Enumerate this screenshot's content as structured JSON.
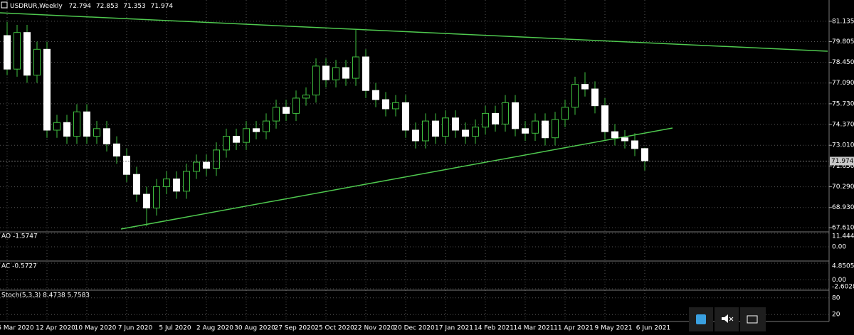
{
  "chart_data": {
    "type": "candlestick",
    "title": "USDRUR,Weekly",
    "categories": [
      "5 Mar 2020",
      null,
      null,
      null,
      "12 Apr 2020",
      null,
      null,
      null,
      "10 May 2020",
      null,
      null,
      null,
      "7 Jun 2020",
      null,
      null,
      null,
      "5 Jul 2020",
      null,
      null,
      null,
      "2 Aug 2020",
      null,
      null,
      null,
      "30 Aug 2020",
      null,
      null,
      null,
      "27 Sep 2020",
      null,
      null,
      null,
      "25 Oct 2020",
      null,
      null,
      null,
      "22 Nov 2020",
      null,
      null,
      null,
      "20 Dec 2020",
      null,
      null,
      null,
      "17 Jan 2021",
      null,
      null,
      null,
      "14 Feb 2021",
      null,
      null,
      null,
      "14 Mar 2021",
      null,
      null,
      null,
      "11 Apr 2021",
      null,
      null,
      null,
      "9 May 2021",
      null,
      null,
      null,
      "6 Jun 2021"
    ],
    "open": [
      80.2,
      78.0,
      80.4,
      77.6,
      79.3,
      74.0,
      74.5,
      73.6,
      75.2,
      73.6,
      74.1,
      73.1,
      72.3,
      71.1,
      69.8,
      68.9,
      70.3,
      70.8,
      70.0,
      71.3,
      71.9,
      71.5,
      72.7,
      73.6,
      73.2,
      74.1,
      73.9,
      74.6,
      75.5,
      75.1,
      76.1,
      76.3,
      78.2,
      77.3,
      78.1,
      77.4,
      78.8,
      76.6,
      76.0,
      75.4,
      75.8,
      74.0,
      73.3,
      74.6,
      73.6,
      74.8,
      74.0,
      73.6,
      74.2,
      75.1,
      74.4,
      75.8,
      74.1,
      73.8,
      74.6,
      73.5,
      74.7,
      75.5,
      77.0,
      76.7,
      75.6,
      73.9,
      73.5,
      73.3,
      72.794
    ],
    "high": [
      81.1,
      80.9,
      80.9,
      79.8,
      79.8,
      75.0,
      75.0,
      75.7,
      75.7,
      74.6,
      74.6,
      73.6,
      72.8,
      71.6,
      70.3,
      70.8,
      71.3,
      71.3,
      71.8,
      72.4,
      72.4,
      73.2,
      74.1,
      74.1,
      74.6,
      74.6,
      75.1,
      76.0,
      76.0,
      76.6,
      76.8,
      78.7,
      78.7,
      78.6,
      78.6,
      80.6,
      79.3,
      77.1,
      76.5,
      76.3,
      76.3,
      74.5,
      75.1,
      75.1,
      75.3,
      75.3,
      74.5,
      74.7,
      75.6,
      75.6,
      76.3,
      76.3,
      74.6,
      75.1,
      75.1,
      75.2,
      76.0,
      77.5,
      77.8,
      77.2,
      76.1,
      74.4,
      74.0,
      73.8,
      72.853
    ],
    "low": [
      77.6,
      77.5,
      77.1,
      77.1,
      73.5,
      73.5,
      73.1,
      73.1,
      73.1,
      73.1,
      72.6,
      71.8,
      70.6,
      69.3,
      67.7,
      68.4,
      69.8,
      69.5,
      69.5,
      70.8,
      71.0,
      71.0,
      72.2,
      72.7,
      72.7,
      73.4,
      73.4,
      74.1,
      74.6,
      74.6,
      75.6,
      75.8,
      76.8,
      76.8,
      76.9,
      76.9,
      76.1,
      75.5,
      74.9,
      74.9,
      73.5,
      72.8,
      72.8,
      73.1,
      73.1,
      73.5,
      73.1,
      73.1,
      73.7,
      73.9,
      73.9,
      73.6,
      73.3,
      73.3,
      73.0,
      73.0,
      74.2,
      75.0,
      76.2,
      75.1,
      73.4,
      73.0,
      72.8,
      72.3,
      71.353
    ],
    "close": [
      78.0,
      80.4,
      77.6,
      79.3,
      74.0,
      74.5,
      73.6,
      75.2,
      73.6,
      74.1,
      73.1,
      72.3,
      71.1,
      69.8,
      68.9,
      70.3,
      70.8,
      70.0,
      71.3,
      71.9,
      71.5,
      72.7,
      73.6,
      73.2,
      74.1,
      73.9,
      74.6,
      75.5,
      75.1,
      76.1,
      76.3,
      78.2,
      77.3,
      78.1,
      77.4,
      78.8,
      76.6,
      76.0,
      75.4,
      75.8,
      74.0,
      73.3,
      74.6,
      73.6,
      74.8,
      74.0,
      73.6,
      74.2,
      75.1,
      74.4,
      75.8,
      74.1,
      73.8,
      74.6,
      73.5,
      74.7,
      75.5,
      77.0,
      76.7,
      75.6,
      73.9,
      73.5,
      73.3,
      72.794,
      71.974
    ],
    "ylim": [
      67.38,
      82.53
    ],
    "yticks": [
      81.135,
      79.805,
      {
        "value": 78.45,
        "label": "78.450"
      },
      {
        "value": 77.09,
        "label": "77.090"
      },
      {
        "value": 75.73,
        "label": "75.730"
      },
      {
        "value": 74.37,
        "label": "74.370"
      },
      {
        "value": 73.01,
        "label": "73.010"
      },
      {
        "value": 71.65,
        "label": "71.650"
      },
      {
        "value": 70.29,
        "label": "70.290"
      },
      {
        "value": 68.93,
        "label": "68.930"
      },
      {
        "value": 67.61,
        "label": "67.610"
      }
    ],
    "grid": true,
    "indicators": [
      {
        "label": "AO -1.5747",
        "ylim": [
          -10.846,
          11.4445
        ],
        "yticks": [
          11.4445,
          {
            "value": 0,
            "label": "0.00"
          }
        ]
      },
      {
        "label": "AC -0.5727",
        "ylim": [
          -2.6028,
          4.8505
        ],
        "yticks": [
          4.8505,
          {
            "value": 0,
            "label": "0.00"
          },
          -2.6028
        ]
      },
      {
        "label": "Stoch(5,3,3) 8.4738 5.7583",
        "ylim": [
          0,
          100
        ],
        "yticks": [
          80,
          20
        ]
      }
    ]
  }
}
